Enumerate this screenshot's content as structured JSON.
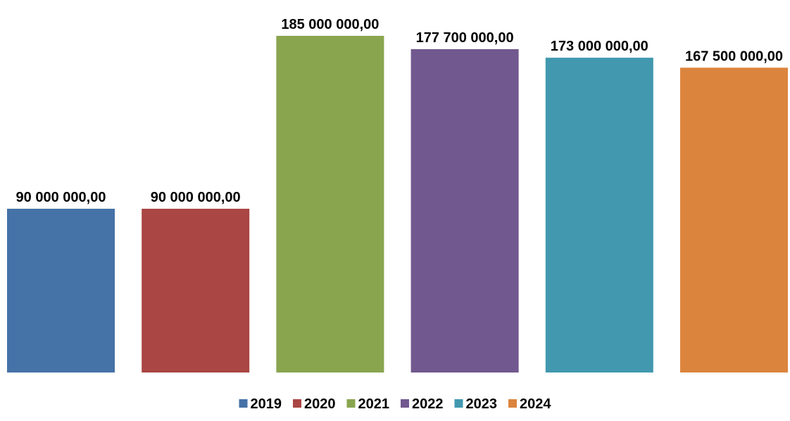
{
  "chart_data": {
    "type": "bar",
    "categories": [
      "2019",
      "2020",
      "2021",
      "2022",
      "2023",
      "2024"
    ],
    "values": [
      90000000,
      90000000,
      185000000,
      177700000,
      173000000,
      167500000
    ],
    "value_labels": [
      "90 000 000,00",
      "90 000 000,00",
      "185 000 000,00",
      "177 700 000,00",
      "173 000 000,00",
      "167 500 000,00"
    ],
    "colors": [
      "#4572a7",
      "#aa4643",
      "#89a54e",
      "#71588f",
      "#4198af",
      "#db843d"
    ],
    "title": "",
    "xlabel": "",
    "ylabel": "",
    "ylim": [
      0,
      185000000
    ],
    "grid": false,
    "legend": {
      "position": "bottom",
      "entries": [
        "2019",
        "2020",
        "2021",
        "2022",
        "2023",
        "2024"
      ]
    }
  }
}
